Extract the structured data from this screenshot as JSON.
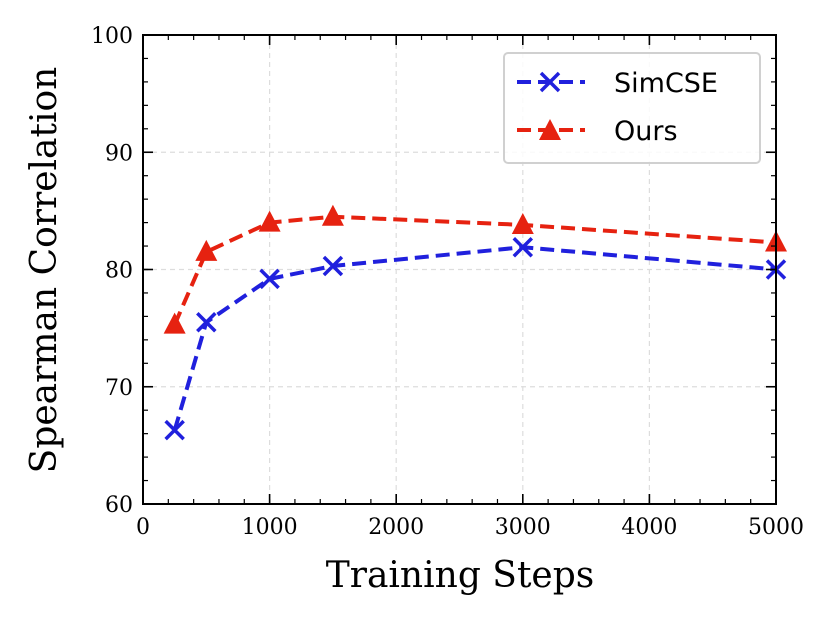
{
  "chart_data": {
    "type": "line",
    "xlabel": "Training Steps",
    "ylabel": "Spearman Correlation",
    "xlim": [
      0,
      5000
    ],
    "ylim": [
      60,
      100
    ],
    "xticks": [
      0,
      1000,
      2000,
      3000,
      4000,
      5000
    ],
    "yticks": [
      60,
      70,
      80,
      90,
      100
    ],
    "grid": true,
    "legend_position": "top-right",
    "series": [
      {
        "name": "SimCSE",
        "color": "#2020dd",
        "marker": "x",
        "linestyle": "dashed",
        "x": [
          250,
          500,
          1000,
          1500,
          3000,
          5000
        ],
        "y": [
          66.3,
          75.5,
          79.2,
          80.3,
          81.9,
          80.0
        ]
      },
      {
        "name": "Ours",
        "color": "#e62210",
        "marker": "triangle",
        "linestyle": "dashed",
        "x": [
          250,
          500,
          1000,
          1500,
          3000,
          5000
        ],
        "y": [
          75.3,
          81.5,
          84.0,
          84.5,
          83.8,
          82.3
        ]
      }
    ]
  }
}
